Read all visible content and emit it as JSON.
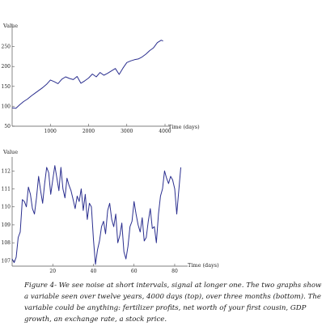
{
  "chart_data": [
    {
      "type": "line",
      "title": "",
      "ylabel": "Value",
      "xlabel": "Time (days)",
      "xlim": [
        0,
        4000
      ],
      "ylim": [
        50,
        300
      ],
      "xticks": [
        1000,
        2000,
        3000,
        4000
      ],
      "yticks": [
        50,
        100,
        150,
        200,
        250
      ],
      "color": "#2b2f8f",
      "series": [
        {
          "x": [
            0,
            100,
            200,
            300,
            400,
            500,
            600,
            700,
            800,
            900,
            1000,
            1100,
            1200,
            1300,
            1400,
            1500,
            1600,
            1700,
            1800,
            1900,
            2000,
            2100,
            2200,
            2300,
            2400,
            2500,
            2600,
            2700,
            2800,
            2900,
            3000,
            3100,
            3200,
            3300,
            3400,
            3500,
            3600,
            3700,
            3800,
            3900,
            3950
          ],
          "y": [
            96,
            95,
            104,
            112,
            118,
            126,
            133,
            140,
            147,
            155,
            166,
            162,
            157,
            168,
            174,
            170,
            167,
            175,
            158,
            164,
            171,
            181,
            174,
            185,
            178,
            183,
            189,
            195,
            180,
            196,
            210,
            214,
            217,
            219,
            224,
            231,
            240,
            247,
            260,
            266,
            264
          ]
        }
      ]
    },
    {
      "type": "line",
      "title": "",
      "ylabel": "Value",
      "xlabel": "Time (days)",
      "xlim": [
        0,
        84
      ],
      "ylim": [
        106.7,
        112.6
      ],
      "xticks": [
        20,
        40,
        60,
        80
      ],
      "yticks": [
        107,
        108,
        109,
        110,
        111,
        112
      ],
      "color": "#2b2f8f",
      "series": [
        {
          "x": [
            0,
            1,
            2,
            3,
            4,
            5,
            6,
            7,
            8,
            9,
            10,
            11,
            12,
            13,
            14,
            15,
            16,
            17,
            18,
            19,
            20,
            21,
            22,
            23,
            24,
            25,
            26,
            27,
            28,
            29,
            30,
            31,
            32,
            33,
            34,
            35,
            36,
            37,
            38,
            39,
            40,
            41,
            42,
            43,
            44,
            45,
            46,
            47,
            48,
            49,
            50,
            51,
            52,
            53,
            54,
            55,
            56,
            57,
            58,
            59,
            60,
            61,
            62,
            63,
            64,
            65,
            66,
            67,
            68,
            69,
            70,
            71,
            72,
            73,
            74,
            75,
            76,
            77,
            78,
            79,
            80,
            81,
            82,
            83
          ],
          "y": [
            107.1,
            106.9,
            107.2,
            108.3,
            108.6,
            110.4,
            110.3,
            110.0,
            111.1,
            110.7,
            109.9,
            109.6,
            110.5,
            111.7,
            110.9,
            110.2,
            111.3,
            112.2,
            111.9,
            110.7,
            111.5,
            112.3,
            111.6,
            110.9,
            112.2,
            111.0,
            110.5,
            111.6,
            111.2,
            110.9,
            110.4,
            109.9,
            110.6,
            110.3,
            111.0,
            109.8,
            110.7,
            109.3,
            110.2,
            110.0,
            108.2,
            106.8,
            107.6,
            108.1,
            108.9,
            109.2,
            108.5,
            109.8,
            110.2,
            109.3,
            108.9,
            109.6,
            108.0,
            108.4,
            109.1,
            107.5,
            107.1,
            107.8,
            108.9,
            109.2,
            110.3,
            109.6,
            109.0,
            108.6,
            109.4,
            108.1,
            108.3,
            109.2,
            109.9,
            108.8,
            108.9,
            108.0,
            109.6,
            110.6,
            111.0,
            112.0,
            111.6,
            111.3,
            111.7,
            111.5,
            111.0,
            109.6,
            110.9,
            112.2
          ]
        }
      ]
    }
  ],
  "caption": "Figure 4- We see noise at short intervals, signal at longer one. The two graphs show a variable seen over twelve years, 4000 days (top), over three months (bottom). The variable could be anything: fertilizer profits, net worth of your first cousin, GDP growth, an exchange rate, a stock price."
}
